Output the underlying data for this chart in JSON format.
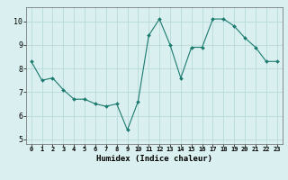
{
  "title": "",
  "xlabel": "Humidex (Indice chaleur)",
  "xlim": [
    -0.5,
    23.5
  ],
  "ylim": [
    4.8,
    10.6
  ],
  "yticks": [
    5,
    6,
    7,
    8,
    9,
    10
  ],
  "xticks": [
    0,
    1,
    2,
    3,
    4,
    5,
    6,
    7,
    8,
    9,
    10,
    11,
    12,
    13,
    14,
    15,
    16,
    17,
    18,
    19,
    20,
    21,
    22,
    23
  ],
  "line_color": "#1a7a6e",
  "bg_color": "#daf0f0",
  "grid_color": "#b8dada",
  "x": [
    0,
    1,
    2,
    3,
    4,
    5,
    6,
    7,
    8,
    9,
    10,
    11,
    12,
    13,
    14,
    15,
    16,
    17,
    18,
    19,
    20,
    21,
    22,
    23
  ],
  "y": [
    8.3,
    7.5,
    7.6,
    7.1,
    6.7,
    6.7,
    6.5,
    6.4,
    6.5,
    5.4,
    6.6,
    9.4,
    10.1,
    9.0,
    7.6,
    8.9,
    8.9,
    10.1,
    10.1,
    9.8,
    9.3,
    8.9,
    8.3,
    8.3
  ]
}
